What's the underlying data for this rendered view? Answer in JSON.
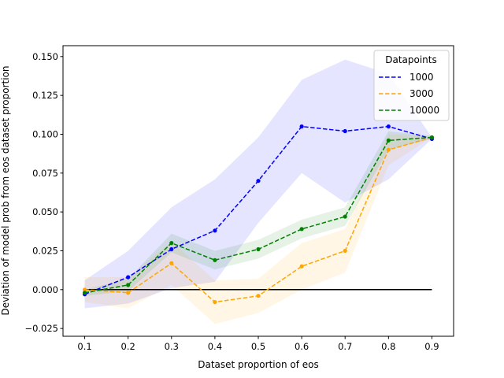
{
  "chart_data": {
    "type": "line",
    "xlabel": "Dataset proportion of eos",
    "ylabel": "Deviation of model prob from eos dataset proportion",
    "x": [
      0.1,
      0.2,
      0.3,
      0.4,
      0.5,
      0.6,
      0.7,
      0.8,
      0.9
    ],
    "xlim": [
      0.05,
      0.95
    ],
    "ylim": [
      -0.03,
      0.157
    ],
    "xticks": [
      "0.1",
      "0.2",
      "0.3",
      "0.4",
      "0.5",
      "0.6",
      "0.7",
      "0.8",
      "0.9"
    ],
    "yticks": [
      "−0.025",
      "0.000",
      "0.025",
      "0.050",
      "0.075",
      "0.100",
      "0.125",
      "0.150"
    ],
    "ytick_values": [
      -0.025,
      0.0,
      0.025,
      0.05,
      0.075,
      0.1,
      0.125,
      0.15
    ],
    "legend": {
      "title": "Datapoints",
      "placement": "top-right"
    },
    "reference_line": {
      "y": 0.0,
      "from": 0.1,
      "to": 0.9,
      "color": "#000000"
    },
    "series": [
      {
        "name": "1000",
        "color": "#0000ff",
        "band_alpha": 0.1,
        "values": [
          -0.003,
          0.008,
          0.026,
          0.038,
          0.07,
          0.105,
          0.102,
          0.105,
          0.097
        ],
        "lower": [
          -0.012,
          -0.009,
          0.001,
          0.005,
          0.043,
          0.075,
          0.056,
          0.071,
          0.097
        ],
        "upper": [
          0.006,
          0.025,
          0.053,
          0.071,
          0.098,
          0.135,
          0.148,
          0.139,
          0.098
        ]
      },
      {
        "name": "3000",
        "color": "#ffa500",
        "band_alpha": 0.1,
        "values": [
          0.0,
          -0.002,
          0.017,
          -0.008,
          -0.004,
          0.015,
          0.025,
          0.09,
          0.098
        ],
        "lower": [
          -0.008,
          -0.012,
          0.003,
          -0.022,
          -0.015,
          0.0,
          0.011,
          0.08,
          0.098
        ],
        "upper": [
          0.008,
          0.008,
          0.031,
          0.006,
          0.007,
          0.03,
          0.039,
          0.1,
          0.099
        ]
      },
      {
        "name": "10000",
        "color": "#008000",
        "band_alpha": 0.1,
        "values": [
          -0.002,
          0.003,
          0.03,
          0.019,
          0.026,
          0.039,
          0.047,
          0.096,
          0.098
        ],
        "lower": [
          -0.004,
          -0.001,
          0.024,
          0.013,
          0.02,
          0.033,
          0.041,
          0.09,
          0.097
        ],
        "upper": [
          0.0,
          0.007,
          0.036,
          0.025,
          0.032,
          0.045,
          0.053,
          0.102,
          0.099
        ]
      }
    ]
  }
}
